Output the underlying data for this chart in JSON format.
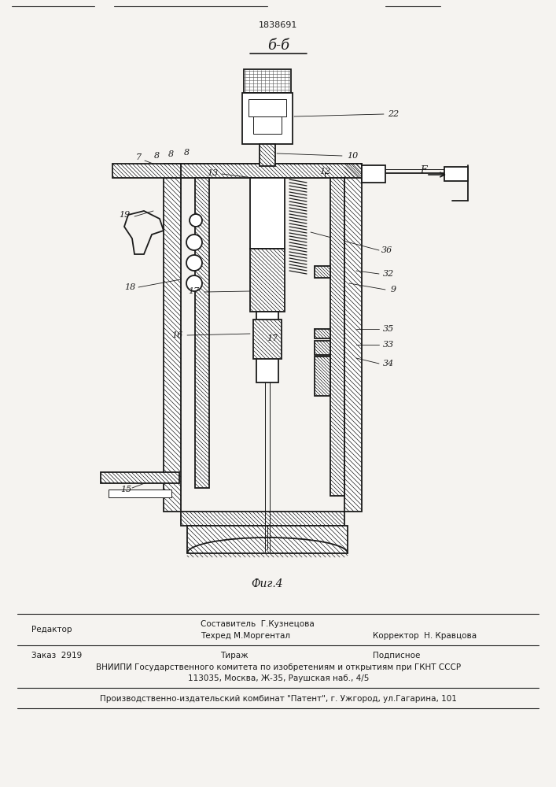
{
  "patent_number": "1838691",
  "section_label": "б-б",
  "fig_label": "Фиг.4",
  "bg_color": "#f5f3f0",
  "line_color": "#1a1a1a",
  "page_width": 7.07,
  "page_height": 10.0,
  "footer": {
    "editor_label": "Редактор",
    "composer_label": "Составитель  Г.Кузнецова",
    "techred_label": "Техред М.Моргентал",
    "corrector_label": "Корректор  Н. Кравцова",
    "order_label": "Заказ  2919",
    "tirazh_label": "Тираж",
    "podpisnoe_label": "Подписное",
    "vniipи_line1": "ВНИИПИ Государственного комитета по изобретениям и открытиям при ГКНТ СССР",
    "vniipи_line2": "113035, Москва, Ж-35, Раушская наб., 4/5",
    "proizv_line": "Производственно-издательский комбинат \"Патент\", г. Ужгород, ул.Гагарина, 101"
  }
}
